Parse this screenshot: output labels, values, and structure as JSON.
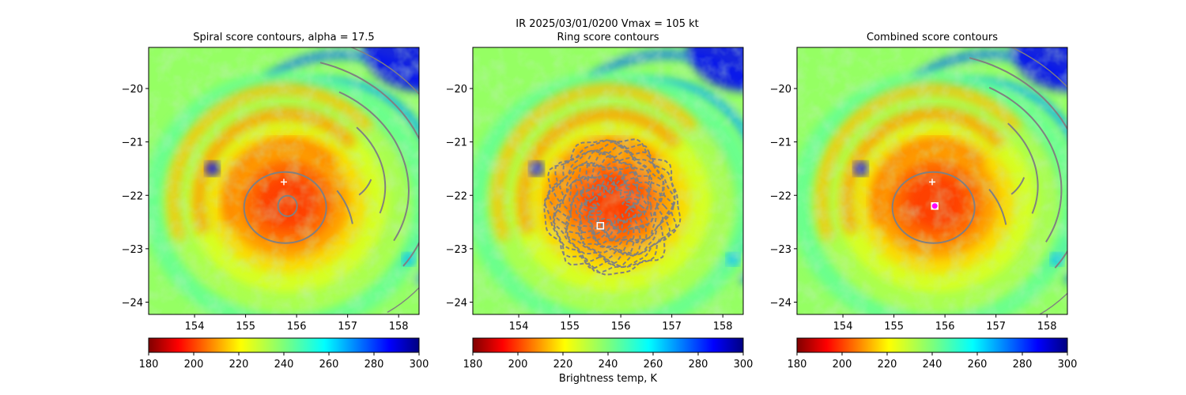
{
  "figure": {
    "suptitle_line1": "IR  2025/03/01/0200    Vmax = 105 kt",
    "colorbar_label": "Brightness temp, K",
    "colormap": "jet_r"
  },
  "chart_data": [
    {
      "type": "heatmap",
      "title": "Spiral score contours, alpha = 17.5",
      "xlabel": "",
      "ylabel": "",
      "xlim": [
        153.1,
        158.4
      ],
      "ylim": [
        -24.23,
        -19.23
      ],
      "xticks": [
        154,
        155,
        156,
        157,
        158
      ],
      "yticks": [
        -20,
        -21,
        -22,
        -23,
        -24
      ],
      "colorbar": {
        "range": [
          180,
          300
        ],
        "ticks": [
          180,
          200,
          220,
          240,
          260,
          280,
          300
        ]
      },
      "storm_center": [
        155.9,
        -22.2
      ],
      "markers": [
        {
          "shape": "plus",
          "color": "#ffffff",
          "lon": 155.75,
          "lat": -21.75
        }
      ],
      "contours": "spiral arcs, grey"
    },
    {
      "type": "heatmap",
      "title": "Ring score contours",
      "xlabel": "",
      "ylabel": "",
      "xlim": [
        153.1,
        158.4
      ],
      "ylim": [
        -24.23,
        -19.23
      ],
      "xticks": [
        154,
        155,
        156,
        157,
        158
      ],
      "yticks": [
        -20,
        -21,
        -22,
        -23,
        -24
      ],
      "colorbar": {
        "range": [
          180,
          300
        ],
        "ticks": [
          180,
          200,
          220,
          240,
          260,
          280,
          300
        ]
      },
      "storm_center": [
        155.9,
        -22.2
      ],
      "markers": [
        {
          "shape": "square",
          "color": "#ffffff",
          "lon": 155.6,
          "lat": -22.57
        }
      ],
      "contours": "dense ring, grey"
    },
    {
      "type": "heatmap",
      "title": "Combined score contours",
      "xlabel": "",
      "ylabel": "",
      "xlim": [
        153.1,
        158.4
      ],
      "ylim": [
        -24.23,
        -19.23
      ],
      "xticks": [
        154,
        155,
        156,
        157,
        158
      ],
      "yticks": [
        -20,
        -21,
        -22,
        -23,
        -24
      ],
      "colorbar": {
        "range": [
          180,
          300
        ],
        "ticks": [
          180,
          200,
          220,
          240,
          260,
          280,
          300
        ]
      },
      "storm_center": [
        155.9,
        -22.2
      ],
      "markers": [
        {
          "shape": "plus",
          "color": "#ffffff",
          "lon": 155.75,
          "lat": -21.75
        },
        {
          "shape": "square",
          "color": "#ffffff",
          "lon": 155.8,
          "lat": -22.2
        },
        {
          "shape": "circle",
          "color": "#ff00ff",
          "lon": 155.8,
          "lat": -22.2
        }
      ],
      "contours": "spiral arcs + eye ring, grey"
    }
  ]
}
